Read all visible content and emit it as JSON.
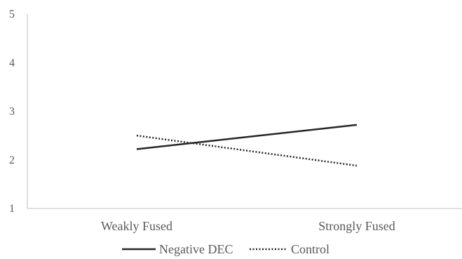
{
  "chart_data": {
    "type": "line",
    "categories": [
      "Weakly Fused",
      "Strongly Fused"
    ],
    "yticks": [
      1,
      2,
      3,
      4,
      5
    ],
    "ylim": [
      1,
      5
    ],
    "grid": false,
    "legend_position": "bottom",
    "series": [
      {
        "name": "Negative DEC",
        "values": [
          2.22,
          2.72
        ],
        "style": "solid",
        "color": "#262626"
      },
      {
        "name": "Control",
        "values": [
          2.5,
          1.88
        ],
        "style": "dotted",
        "color": "#262626"
      }
    ],
    "axis_color": "#bfbfbf"
  }
}
